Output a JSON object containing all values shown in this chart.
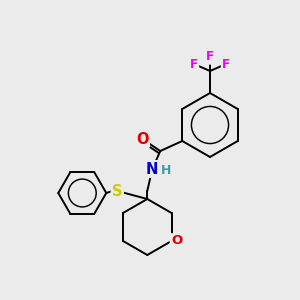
{
  "background_color": "#ebebeb",
  "atom_colors": {
    "C": "#000000",
    "N": "#0000cc",
    "O": "#dd0000",
    "S": "#cccc00",
    "F": "#ee00ee",
    "H": "#4499aa"
  },
  "bond_color": "#000000",
  "figsize": [
    3.0,
    3.0
  ],
  "dpi": 100,
  "bond_lw": 1.4,
  "font_size_atom": 9.5,
  "font_size_F": 8.5
}
